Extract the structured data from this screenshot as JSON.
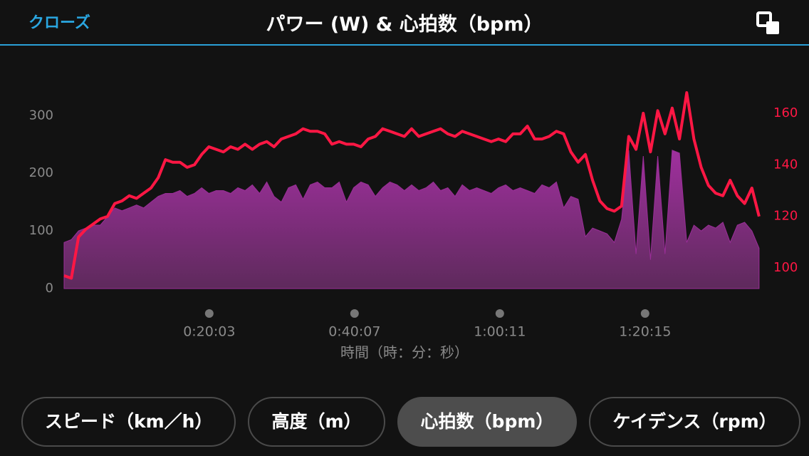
{
  "header": {
    "close": "クローズ",
    "title": "パワー (W) & 心拍数（bpm）"
  },
  "chart_data": {
    "type": "area-line",
    "x_label": "時間（時：分：秒）",
    "x": [
      0,
      60,
      120,
      180,
      240,
      300,
      360,
      420,
      480,
      540,
      600,
      660,
      720,
      780,
      840,
      900,
      960,
      1020,
      1080,
      1140,
      1200,
      1260,
      1320,
      1380,
      1440,
      1500,
      1560,
      1620,
      1680,
      1740,
      1800,
      1860,
      1920,
      1980,
      2040,
      2100,
      2160,
      2220,
      2280,
      2340,
      2400,
      2460,
      2520,
      2580,
      2640,
      2700,
      2760,
      2820,
      2880,
      2940,
      3000,
      3060,
      3120,
      3180,
      3240,
      3300,
      3360,
      3420,
      3480,
      3540,
      3600,
      3660,
      3720,
      3780,
      3840,
      3900,
      3960,
      4020,
      4080,
      4140,
      4200,
      4260,
      4320,
      4380,
      4440,
      4500,
      4560,
      4620,
      4680,
      4740,
      4800,
      4860,
      4920,
      4980,
      5040,
      5100,
      5160,
      5220,
      5280,
      5340,
      5400,
      5460,
      5520,
      5580,
      5640,
      5700,
      5760
    ],
    "xlim": [
      0,
      5784
    ],
    "xticks": [
      {
        "value": 1203,
        "label": "0:20:03"
      },
      {
        "value": 2407,
        "label": "0:40:07"
      },
      {
        "value": 3611,
        "label": "1:00:11"
      },
      {
        "value": 4815,
        "label": "1:20:15"
      }
    ],
    "ylim": [
      0,
      340
    ],
    "yticks": [
      0,
      100,
      200,
      300
    ],
    "y2lim": [
      92,
      168
    ],
    "y2ticks": [
      100,
      120,
      140,
      160
    ],
    "series": [
      {
        "color": "#9a2e98",
        "values": [
          80,
          85,
          100,
          105,
          110,
          110,
          125,
          140,
          135,
          140,
          145,
          140,
          150,
          160,
          165,
          165,
          170,
          160,
          165,
          175,
          165,
          170,
          170,
          165,
          175,
          170,
          180,
          165,
          185,
          160,
          150,
          175,
          180,
          155,
          180,
          185,
          175,
          175,
          185,
          150,
          175,
          185,
          180,
          160,
          175,
          185,
          180,
          170,
          180,
          170,
          175,
          185,
          170,
          175,
          160,
          180,
          170,
          175,
          170,
          165,
          175,
          180,
          170,
          175,
          170,
          165,
          180,
          175,
          185,
          140,
          160,
          155,
          90,
          105,
          100,
          95,
          80,
          120,
          240,
          60,
          230,
          50,
          230,
          60,
          240,
          235,
          80,
          110,
          100,
          110,
          105,
          115,
          80,
          110,
          115,
          100,
          70
        ]
      },
      {
        "color": "#ff1744",
        "axis": "y2",
        "values": [
          97,
          96,
          112,
          115,
          117,
          119,
          120,
          125,
          126,
          128,
          127,
          129,
          131,
          135,
          142,
          141,
          141,
          139,
          140,
          144,
          147,
          146,
          145,
          147,
          146,
          148,
          146,
          148,
          149,
          147,
          150,
          151,
          152,
          154,
          153,
          153,
          152,
          148,
          149,
          148,
          148,
          147,
          150,
          151,
          154,
          153,
          152,
          151,
          154,
          151,
          152,
          153,
          154,
          152,
          151,
          153,
          152,
          151,
          150,
          149,
          150,
          149,
          152,
          152,
          155,
          150,
          150,
          151,
          153,
          152,
          145,
          141,
          144,
          134,
          126,
          123,
          122,
          124,
          151,
          146,
          160,
          145,
          161,
          152,
          162,
          150,
          168,
          150,
          139,
          132,
          129,
          128,
          134,
          128,
          125,
          131,
          120
        ]
      }
    ]
  },
  "buttons": {
    "items": [
      "スピード（km／h）",
      "高度（m）",
      "心拍数（bpm）",
      "ケイデンス（rpm）"
    ],
    "selected": 2
  }
}
